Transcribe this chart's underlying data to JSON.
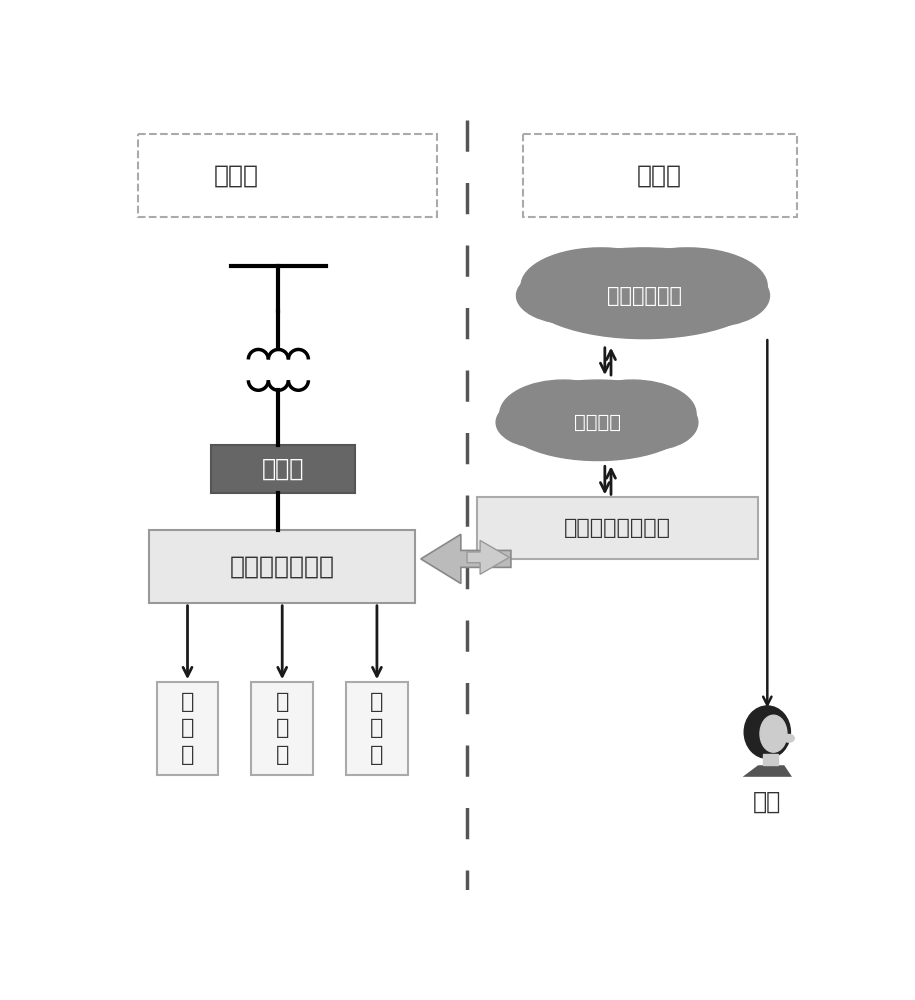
{
  "bg_color": "#ffffff",
  "dash_border_color": "#aaaaaa",
  "center_line_color": "#555555",
  "left_label": "电力侧",
  "right_label": "信息侧",
  "cloud1_label": "智慧控制系统",
  "cloud2_label": "服务主站",
  "terminal_label": "台区智能融合终端",
  "controller_label": "充电设施控制器",
  "cabinet_label": "配电柜",
  "charger_label": "充\n电\n桩",
  "user_label": "用户",
  "cloud_fill": "#888888",
  "cloud_text": "#ffffff",
  "cabinet_fill": "#666666",
  "cabinet_text": "#ffffff",
  "controller_fill": "#e8e8e8",
  "controller_border": "#999999",
  "terminal_fill": "#e8e8e8",
  "terminal_border": "#aaaaaa",
  "charger_fill": "#f5f5f5",
  "charger_border": "#aaaaaa",
  "arrow_dark": "#1a1a1a",
  "big_arrow_fill": "#bbbbbb",
  "big_arrow_edge": "#888888"
}
